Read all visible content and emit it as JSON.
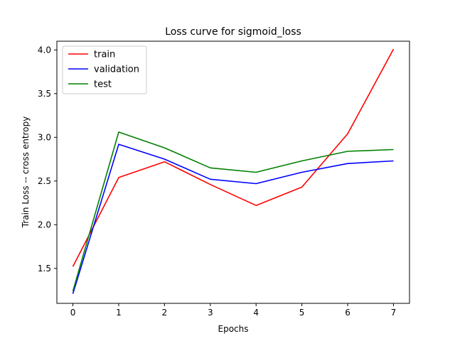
{
  "chart_data": {
    "type": "line",
    "title": "Loss curve for sigmoid_loss",
    "xlabel": "Epochs",
    "ylabel": "Train Loss -- cross entropy",
    "x": [
      0,
      1,
      2,
      3,
      4,
      5,
      6,
      7
    ],
    "xlim": [
      -0.35,
      7.35
    ],
    "ylim": [
      1.1,
      4.1
    ],
    "xticks": [
      0,
      1,
      2,
      3,
      4,
      5,
      6,
      7
    ],
    "yticks": [
      1.5,
      2.0,
      2.5,
      3.0,
      3.5,
      4.0
    ],
    "xtick_labels": [
      "0",
      "1",
      "2",
      "3",
      "4",
      "5",
      "6",
      "7"
    ],
    "ytick_labels": [
      "1.5",
      "2.0",
      "2.5",
      "3.0",
      "3.5",
      "4.0"
    ],
    "grid": false,
    "legend_position": "top-left",
    "series": [
      {
        "name": "train",
        "color": "#ff0000",
        "values": [
          1.52,
          2.54,
          2.72,
          2.46,
          2.22,
          2.43,
          3.04,
          4.01
        ]
      },
      {
        "name": "validation",
        "color": "#0000ff",
        "values": [
          1.21,
          2.92,
          2.75,
          2.52,
          2.47,
          2.6,
          2.7,
          2.73
        ]
      },
      {
        "name": "test",
        "color": "#008000",
        "values": [
          1.24,
          3.06,
          2.88,
          2.65,
          2.6,
          2.73,
          2.84,
          2.86
        ]
      }
    ]
  }
}
